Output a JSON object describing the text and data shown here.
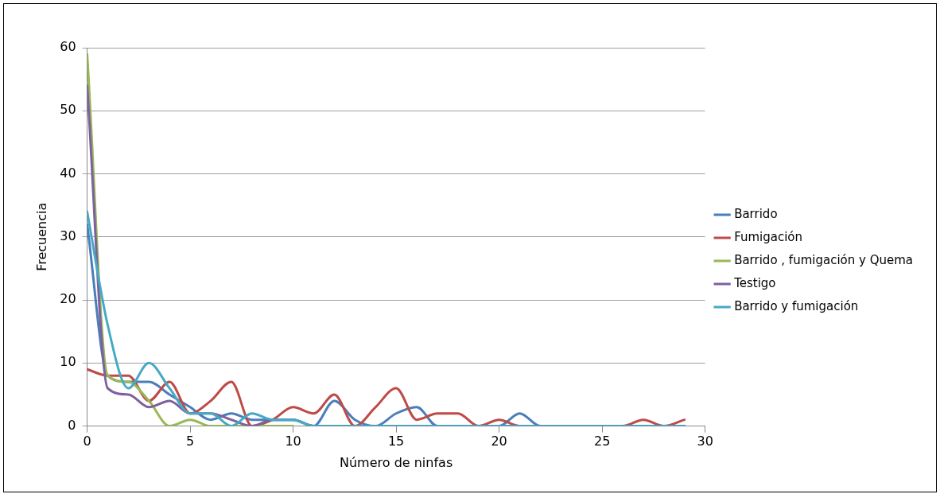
{
  "chart_data": {
    "type": "line",
    "xlabel": "Número de ninfas",
    "ylabel": "Frecuencia",
    "x": [
      0,
      1,
      2,
      3,
      4,
      5,
      6,
      7,
      8,
      9,
      10,
      11,
      12,
      13,
      14,
      15,
      16,
      17,
      18,
      19,
      20,
      21,
      22,
      23,
      24,
      25,
      26,
      27,
      28,
      29
    ],
    "xlim": [
      0,
      30
    ],
    "xticks": [
      0,
      5,
      10,
      15,
      20,
      25,
      30
    ],
    "ylim": [
      0,
      60
    ],
    "yticks": [
      0,
      10,
      20,
      30,
      40,
      50,
      60
    ],
    "grid": "y",
    "legend": "right",
    "marker": "none",
    "line_style": "solid",
    "series": [
      {
        "name": "Barrido",
        "color": "#4a7ebb",
        "values": [
          32,
          8,
          7,
          7,
          5,
          3,
          1,
          2,
          1,
          1,
          1,
          0,
          4,
          1,
          0,
          2,
          3,
          0,
          0,
          0,
          0,
          2,
          0,
          0,
          0,
          0,
          0,
          0,
          0,
          0
        ]
      },
      {
        "name": "Fumigación",
        "color": "#be4b48",
        "values": [
          9,
          8,
          8,
          4,
          7,
          2,
          4,
          7,
          0,
          1,
          3,
          2,
          5,
          0,
          3,
          6,
          1,
          2,
          2,
          0,
          1,
          0,
          0,
          0,
          0,
          0,
          0,
          1,
          0,
          1
        ]
      },
      {
        "name": "Barrido , fumigación y Quema",
        "color": "#98b954",
        "values": [
          59,
          8,
          7,
          4,
          0,
          1,
          0,
          0,
          0,
          0,
          0,
          null,
          null,
          null,
          null,
          null,
          null,
          null,
          null,
          null,
          null,
          null,
          null,
          null,
          null,
          null,
          null,
          null,
          null,
          null
        ]
      },
      {
        "name": "Testigo",
        "color": "#7d60a0",
        "values": [
          54,
          6,
          5,
          3,
          4,
          2,
          2,
          1,
          0,
          1,
          1,
          0,
          0,
          0,
          0,
          0,
          0,
          0,
          0,
          0,
          0,
          0,
          0,
          0,
          0,
          0,
          0,
          0,
          0,
          0
        ]
      },
      {
        "name": "Barrido y fumigación",
        "color": "#46aac5",
        "values": [
          34,
          16,
          6,
          10,
          6,
          2,
          2,
          0,
          2,
          1,
          1,
          0,
          0,
          0,
          0,
          0,
          0,
          0,
          0,
          0,
          0,
          0,
          0,
          0,
          0,
          0,
          0,
          0,
          0,
          0
        ]
      }
    ]
  }
}
